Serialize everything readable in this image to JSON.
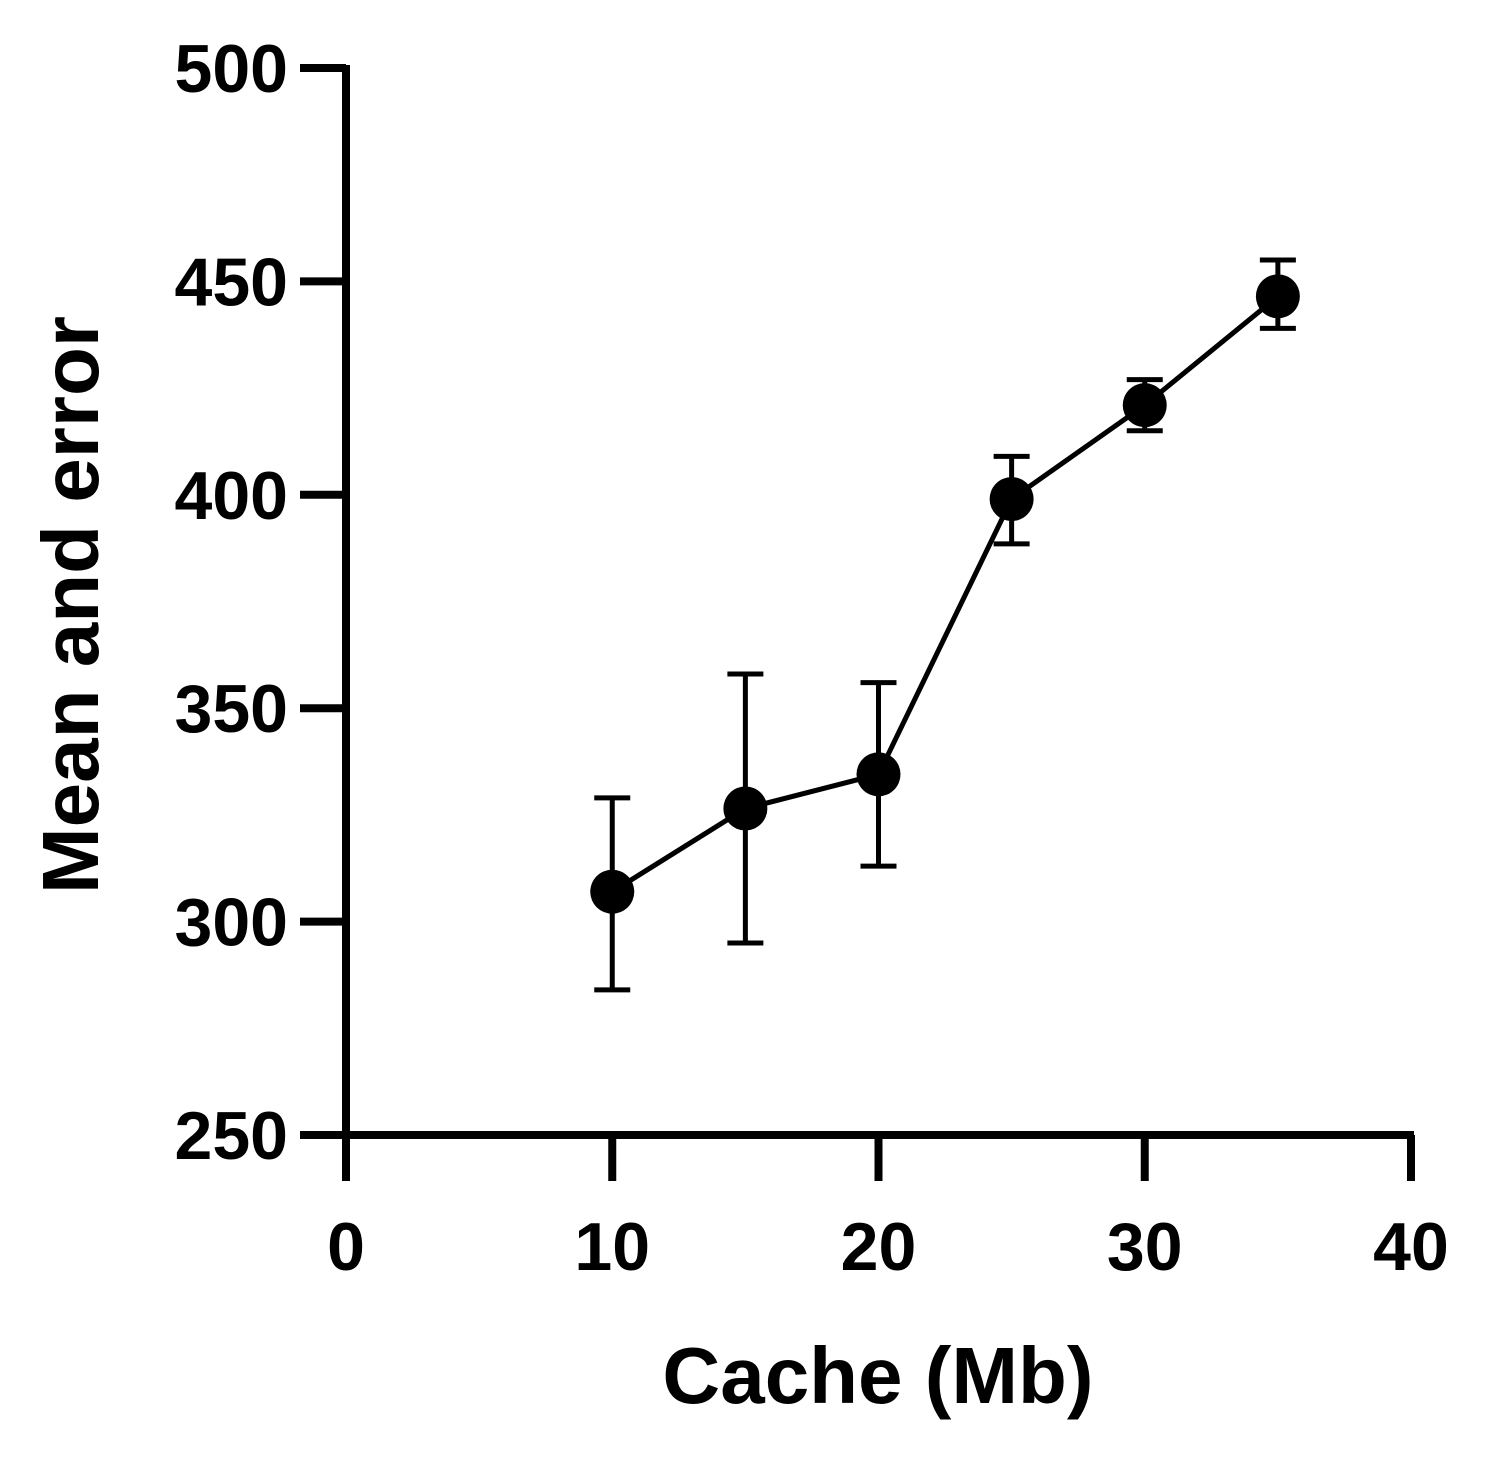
{
  "chart_data": {
    "type": "line",
    "title": "",
    "xlabel": "Cache (Mb)",
    "ylabel": "Mean and error",
    "xlim": [
      0,
      40
    ],
    "ylim": [
      250,
      500
    ],
    "xticks": [
      "0",
      "10",
      "20",
      "30",
      "40"
    ],
    "yticks": [
      "250",
      "300",
      "350",
      "400",
      "450",
      "500"
    ],
    "grid": false,
    "legend": "none",
    "series": [
      {
        "x": [
          10,
          15,
          20,
          25,
          30,
          35
        ],
        "y": [
          307,
          326.5,
          334.5,
          399,
          421,
          446.5
        ],
        "error_low": [
          284,
          295,
          313,
          388.5,
          415,
          439
        ],
        "error_high": [
          329,
          358,
          356,
          409,
          427,
          455
        ],
        "marker": "filled-circle"
      }
    ],
    "colors": {
      "line": "#000000",
      "marker": "#000000"
    }
  }
}
